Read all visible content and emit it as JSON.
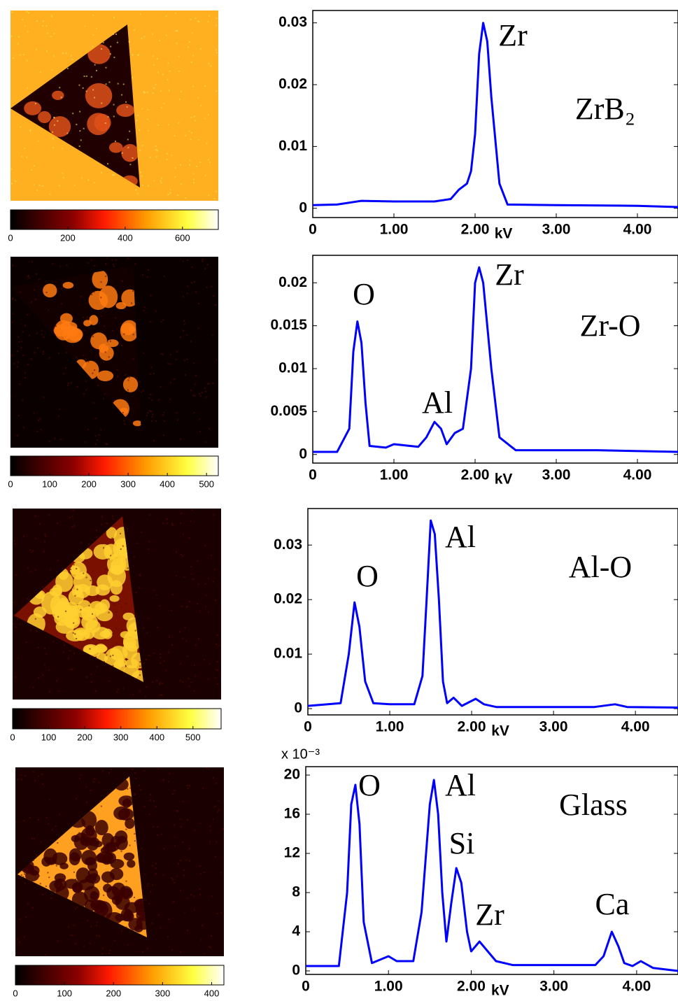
{
  "chart_data": [
    {
      "type": "colorbar",
      "xlim": [
        0,
        725
      ],
      "xticks": [
        0,
        200,
        400,
        600
      ]
    },
    {
      "type": "line",
      "xlim": [
        0,
        4.5
      ],
      "ylim": [
        -0.0015,
        0.032
      ],
      "xticks": [
        0,
        {
          "value": 1,
          "label": "1.00"
        },
        {
          "value": 2,
          "label": "2.00"
        },
        {
          "value": 3,
          "label": "3.00"
        },
        {
          "value": 4,
          "label": "4.00"
        }
      ],
      "yticks": [
        0,
        0.01,
        0.02,
        0.03
      ],
      "xlabel": "kV",
      "x": [
        0,
        0.3,
        0.6,
        1.0,
        1.5,
        1.7,
        1.8,
        1.9,
        1.95,
        2.0,
        2.05,
        2.1,
        2.15,
        2.2,
        2.3,
        2.4,
        3.0,
        4.0,
        4.5
      ],
      "series": [
        {
          "color": "#0000ff",
          "values": [
            0.0005,
            0.0006,
            0.0012,
            0.0011,
            0.0011,
            0.0015,
            0.003,
            0.004,
            0.006,
            0.012,
            0.025,
            0.03,
            0.027,
            0.018,
            0.004,
            0.0006,
            0.0005,
            0.0004,
            0.0002
          ]
        }
      ],
      "annotations": [
        {
          "text": "Zr"
        },
        {
          "text": "ZrB₂"
        }
      ]
    },
    {
      "type": "colorbar",
      "xlim": [
        0,
        530
      ],
      "xticks": [
        0,
        100,
        200,
        300,
        400,
        500
      ]
    },
    {
      "type": "line",
      "xlim": [
        0,
        4.5
      ],
      "ylim": [
        -0.001,
        0.0232
      ],
      "xticks": [
        0,
        {
          "value": 1,
          "label": "1.00"
        },
        {
          "value": 2,
          "label": "2.00"
        },
        {
          "value": 3,
          "label": "3.00"
        },
        {
          "value": 4,
          "label": "4.00"
        }
      ],
      "yticks": [
        0,
        0.005,
        0.01,
        0.015,
        0.02
      ],
      "xlabel": "kV",
      "x": [
        0,
        0.3,
        0.45,
        0.5,
        0.55,
        0.6,
        0.65,
        0.7,
        0.9,
        1.0,
        1.3,
        1.4,
        1.5,
        1.58,
        1.65,
        1.75,
        1.85,
        1.95,
        2.0,
        2.05,
        2.1,
        2.2,
        2.3,
        2.5,
        3.5,
        4.5
      ],
      "series": [
        {
          "color": "#0000ff",
          "values": [
            0.0003,
            0.0003,
            0.003,
            0.012,
            0.0155,
            0.013,
            0.006,
            0.001,
            0.0008,
            0.0012,
            0.0009,
            0.002,
            0.0038,
            0.003,
            0.0012,
            0.0025,
            0.003,
            0.01,
            0.02,
            0.0218,
            0.02,
            0.01,
            0.002,
            0.0005,
            0.0005,
            0.0003
          ]
        }
      ],
      "annotations": [
        {
          "text": "O"
        },
        {
          "text": "Zr"
        },
        {
          "text": "Zr-O"
        },
        {
          "text": "Al"
        }
      ]
    },
    {
      "type": "colorbar",
      "xlim": [
        0,
        578
      ],
      "xticks": [
        0,
        100,
        200,
        300,
        400,
        500
      ]
    },
    {
      "type": "line",
      "xlim": [
        0,
        4.52
      ],
      "ylim": [
        -0.00115,
        0.0367
      ],
      "xticks": [
        0,
        {
          "value": 1,
          "label": "1.00"
        },
        {
          "value": 2,
          "label": "2.00"
        },
        {
          "value": 3,
          "label": "3.00"
        },
        {
          "value": 4,
          "label": "4.00"
        }
      ],
      "yticks": [
        0,
        0.01,
        0.02,
        0.03
      ],
      "xlabel": "kV",
      "x": [
        0,
        0.4,
        0.5,
        0.57,
        0.63,
        0.7,
        0.8,
        1.0,
        1.3,
        1.4,
        1.45,
        1.5,
        1.55,
        1.6,
        1.65,
        1.7,
        1.78,
        1.88,
        2.05,
        2.15,
        2.3,
        3.5,
        3.75,
        3.9,
        4.52
      ],
      "series": [
        {
          "color": "#0000ff",
          "values": [
            0.0005,
            0.001,
            0.01,
            0.0195,
            0.015,
            0.005,
            0.001,
            0.0008,
            0.0008,
            0.006,
            0.02,
            0.0345,
            0.032,
            0.02,
            0.005,
            0.001,
            0.002,
            0.0005,
            0.0018,
            0.0008,
            0.0003,
            0.0003,
            0.0008,
            0.0003,
            0.0002
          ]
        }
      ],
      "annotations": [
        {
          "text": "Al"
        },
        {
          "text": "O"
        },
        {
          "text": "Al-O"
        }
      ]
    },
    {
      "type": "colorbar",
      "xlim": [
        0,
        425
      ],
      "xticks": [
        0,
        100,
        200,
        300,
        400
      ]
    },
    {
      "type": "line",
      "xlim": [
        0,
        4.5
      ],
      "ylim": [
        -0.36,
        20.86
      ],
      "xticks": [
        0,
        {
          "value": 1,
          "label": "1.00"
        },
        {
          "value": 2,
          "label": "2.00"
        },
        {
          "value": 3,
          "label": "3.00"
        },
        {
          "value": 4,
          "label": "4.00"
        }
      ],
      "yticks": [
        0,
        4,
        8,
        12,
        16,
        20
      ],
      "xlabel": "kV",
      "scale_label": "x 10⁻³",
      "x": [
        0,
        0.4,
        0.5,
        0.55,
        0.6,
        0.65,
        0.7,
        0.8,
        1.0,
        1.1,
        1.3,
        1.4,
        1.5,
        1.55,
        1.6,
        1.65,
        1.7,
        1.76,
        1.82,
        1.88,
        1.95,
        2.0,
        2.1,
        2.15,
        2.3,
        2.5,
        3.5,
        3.6,
        3.7,
        3.78,
        3.85,
        3.95,
        4.05,
        4.2,
        4.5
      ],
      "series": [
        {
          "color": "#0000ff",
          "values": [
            0.5,
            0.5,
            8,
            17,
            19,
            15,
            5,
            0.8,
            1.5,
            1,
            1,
            6,
            17,
            19.5,
            16,
            8,
            3,
            7,
            10.5,
            9,
            4,
            2,
            3,
            2.5,
            1,
            0.6,
            0.6,
            1.5,
            4,
            2.5,
            0.8,
            0.5,
            1,
            0.3,
            0
          ]
        }
      ],
      "annotations": [
        {
          "text": "O"
        },
        {
          "text": "Al"
        },
        {
          "text": "Si"
        },
        {
          "text": "Zr"
        },
        {
          "text": "Ca"
        },
        {
          "text": "Glass"
        }
      ]
    }
  ]
}
